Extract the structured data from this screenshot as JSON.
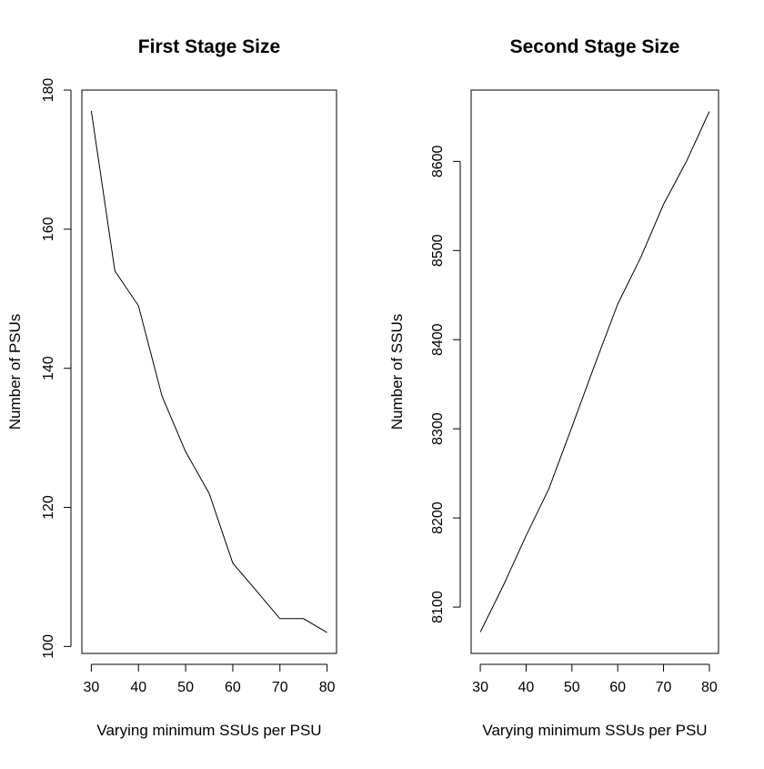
{
  "chart_data": [
    {
      "type": "line",
      "title": "First Stage Size",
      "xlabel": "Varying minimum SSUs per PSU",
      "ylabel": "Number of PSUs",
      "x": [
        30,
        35,
        40,
        45,
        50,
        55,
        60,
        65,
        70,
        75,
        80
      ],
      "series": [
        {
          "values": [
            177,
            154,
            149,
            136,
            128,
            122,
            112,
            108,
            104,
            104,
            102
          ]
        }
      ],
      "xlim": [
        28,
        82
      ],
      "ylim": [
        99,
        180
      ],
      "xticks": [
        30,
        40,
        50,
        60,
        70,
        80
      ],
      "yticks": [
        100,
        120,
        140,
        160,
        180
      ],
      "grid": false
    },
    {
      "type": "line",
      "title": "Second Stage Size",
      "xlabel": "Varying minimum SSUs per PSU",
      "ylabel": "Number of SSUs",
      "x": [
        30,
        35,
        40,
        45,
        50,
        55,
        60,
        65,
        70,
        75,
        80
      ],
      "series": [
        {
          "values": [
            8072,
            8124,
            8180,
            8233,
            8302,
            8372,
            8440,
            8492,
            8552,
            8600,
            8656
          ]
        }
      ],
      "xlim": [
        28,
        82
      ],
      "ylim": [
        8048,
        8680
      ],
      "xticks": [
        30,
        40,
        50,
        60,
        70,
        80
      ],
      "yticks": [
        8100,
        8200,
        8300,
        8400,
        8500,
        8600
      ],
      "grid": false
    }
  ]
}
